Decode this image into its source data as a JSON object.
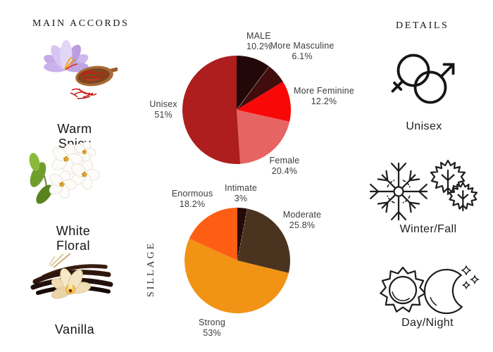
{
  "accords": {
    "title": "MAIN ACCORDS",
    "items": [
      {
        "name": "warm-spicy",
        "image": "saffron-crocus-photo",
        "line1": "Warm",
        "line2": "Spicy"
      },
      {
        "name": "white-floral",
        "image": "jasmine-photo",
        "line1": "White",
        "line2": "Floral"
      },
      {
        "name": "vanilla",
        "image": "vanilla-photo",
        "line1": "Vanilla",
        "line2": ""
      }
    ]
  },
  "details": {
    "title": "DETAILS",
    "items": [
      {
        "icon": "unisex-gender-icon",
        "label": "Unisex"
      },
      {
        "icon": "snowflake-and-maple-leaves-icon",
        "label": "Winter/Fall"
      },
      {
        "icon": "sun-and-moon-icon",
        "label": "Day/Night"
      }
    ]
  },
  "chart_data": [
    {
      "type": "pie",
      "name": "gender-distribution",
      "start": "12-oclock-clockwise",
      "legend_position": "outside-labels",
      "slices": [
        {
          "label": "MALE",
          "value": 10.2,
          "pct": "10.2%",
          "color": "#220808"
        },
        {
          "label": "More Masculine",
          "value": 6.1,
          "pct": "6.1%",
          "color": "#420d0d"
        },
        {
          "label": "More Feminine",
          "value": 12.2,
          "pct": "12.2%",
          "color": "#f90808"
        },
        {
          "label": "Female",
          "value": 20.4,
          "pct": "20.4%",
          "color": "#e66464"
        },
        {
          "label": "Unisex",
          "value": 51,
          "pct": "51%",
          "color": "#ae1e1e"
        }
      ]
    },
    {
      "type": "pie",
      "name": "sillage-distribution",
      "axis_label": "SILLAGE",
      "start": "12-oclock-clockwise",
      "legend_position": "outside-labels",
      "slices": [
        {
          "label": "Intimate",
          "value": 3,
          "pct": "3%",
          "color": "#260a08"
        },
        {
          "label": "Moderate",
          "value": 25.8,
          "pct": "25.8%",
          "color": "#4a3420"
        },
        {
          "label": "Strong",
          "value": 53,
          "pct": "53%",
          "color": "#f19314"
        },
        {
          "label": "Enormous",
          "value": 18.2,
          "pct": "18.2%",
          "color": "#fe5e14"
        }
      ]
    }
  ]
}
